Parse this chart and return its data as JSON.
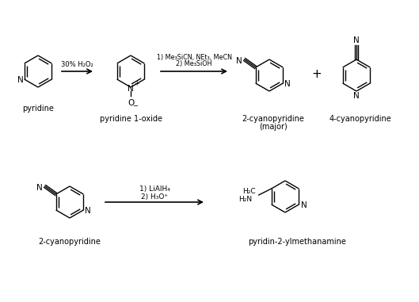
{
  "bg_color": "#ffffff",
  "text_color": "#000000",
  "figsize": [
    5.29,
    3.81
  ],
  "dpi": 100,
  "labels": {
    "pyridine": "pyridine",
    "pyridine_1oxide": "pyridine 1-oxide",
    "two_cyanopyridine": "2-cyanopyridine",
    "major": "(major)",
    "four_cyanopyridine": "4-cyanopyridine",
    "two_cyanopyridine2": "2-cyanopyridine",
    "pyridin2ylmethanamine": "pyridin-2-ylmethanamine"
  },
  "reagents": {
    "arrow1": "30% H₂O₂",
    "arrow2_line1": "1) Me₃SiCN, NEt₃, MeCN",
    "arrow2_line2": "2) Me₃SiOH",
    "arrow3_line1": "1) LiAlH₄",
    "arrow3_line2": "2) H₃O⁺"
  }
}
